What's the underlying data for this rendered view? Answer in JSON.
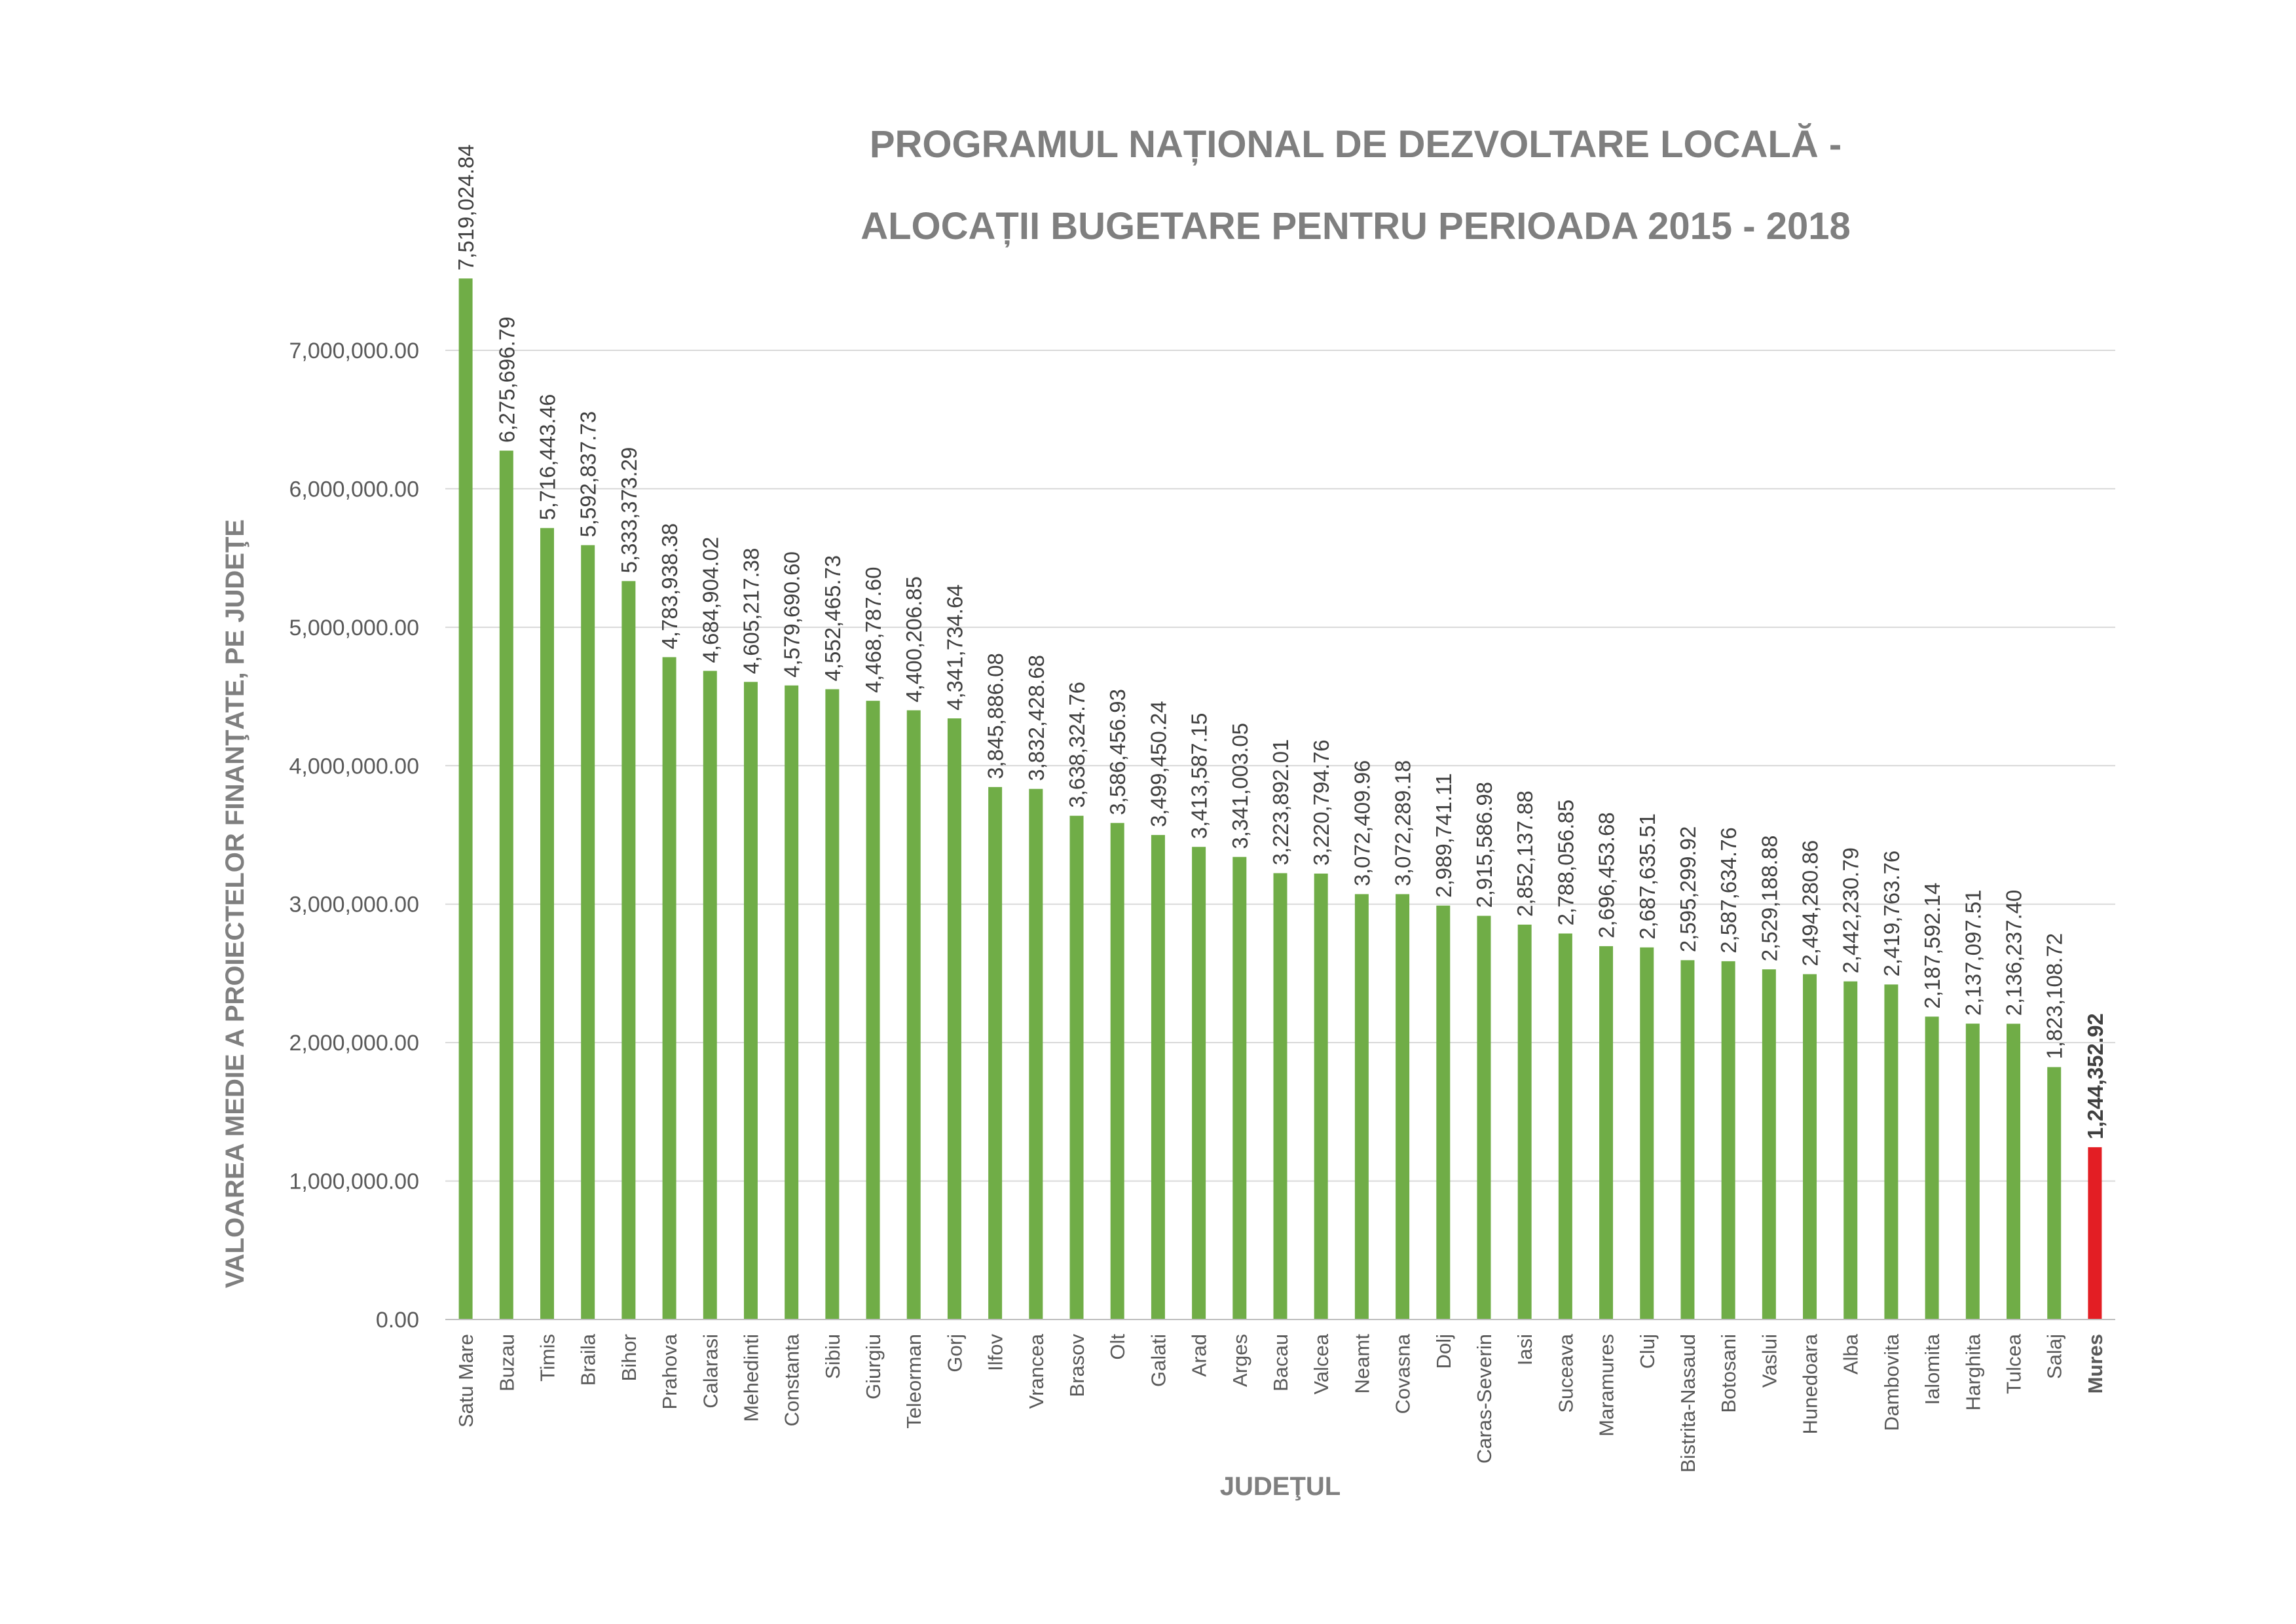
{
  "colors": {
    "bar": "#70ad47",
    "highlight": "#e31e24",
    "text": "#7f7f7f"
  },
  "chart_data": {
    "type": "bar",
    "title_line1": "PROGRAMUL NAȚIONAL DE DEZVOLTARE LOCALĂ  -",
    "title_line2": "ALOCAȚII BUGETARE PENTRU PERIOADA 2015 - 2018",
    "xlabel": "JUDEŢUL",
    "ylabel": "VALOAREA MEDIE A PROIECTELOR FINANŢATE, PE JUDEŢE",
    "ylim": [
      0,
      7000000
    ],
    "yticks": [
      0,
      1000000,
      2000000,
      3000000,
      4000000,
      5000000,
      6000000,
      7000000
    ],
    "ytick_labels": [
      "0.00",
      "1,000,000.00",
      "2,000,000.00",
      "3,000,000.00",
      "4,000,000.00",
      "5,000,000.00",
      "6,000,000.00",
      "7,000,000.00"
    ],
    "grid": true,
    "highlight_category": "Mures",
    "categories": [
      "Satu Mare",
      "Buzau",
      "Timis",
      "Braila",
      "Bihor",
      "Prahova",
      "Calarasi",
      "Mehedinti",
      "Constanta",
      "Sibiu",
      "Giurgiu",
      "Teleorman",
      "Gorj",
      "Ilfov",
      "Vrancea",
      "Brasov",
      "Olt",
      "Galati",
      "Arad",
      "Arges",
      "Bacau",
      "Valcea",
      "Neamt",
      "Covasna",
      "Dolj",
      "Caras-Severin",
      "Iasi",
      "Suceava",
      "Maramures",
      "Cluj",
      "Bistrita-Nasaud",
      "Botosani",
      "Vaslui",
      "Hunedoara",
      "Alba",
      "Dambovita",
      "Ialomita",
      "Harghita",
      "Tulcea",
      "Salaj",
      "Mures"
    ],
    "values": [
      7519024.84,
      6275696.79,
      5716443.46,
      5592837.73,
      5333373.29,
      4783938.38,
      4684904.02,
      4605217.38,
      4579690.6,
      4552465.73,
      4468787.6,
      4400206.85,
      4341734.64,
      3845886.08,
      3832428.68,
      3638324.76,
      3586456.93,
      3499450.24,
      3413587.15,
      3341003.05,
      3223892.01,
      3220794.76,
      3072409.96,
      3072289.18,
      2989741.11,
      2915586.98,
      2852137.88,
      2788056.85,
      2696453.68,
      2687635.51,
      2595299.92,
      2587634.76,
      2529188.88,
      2494280.86,
      2442230.79,
      2419763.76,
      2187592.14,
      2137097.51,
      2136237.4,
      1823108.72,
      1244352.92
    ],
    "value_labels": [
      "7,519,024.84",
      "6,275,696.79",
      "5,716,443.46",
      "5,592,837.73",
      "5,333,373.29",
      "4,783,938.38",
      "4,684,904.02",
      "4,605,217.38",
      "4,579,690.60",
      "4,552,465.73",
      "4,468,787.60",
      "4,400,206.85",
      "4,341,734.64",
      "3,845,886.08",
      "3,832,428.68",
      "3,638,324.76",
      "3,586,456.93",
      "3,499,450.24",
      "3,413,587.15",
      "3,341,003.05",
      "3,223,892.01",
      "3,220,794.76",
      "3,072,409.96",
      "3,072,289.18",
      "2,989,741.11",
      "2,915,586.98",
      "2,852,137.88",
      "2,788,056.85",
      "2,696,453.68",
      "2,687,635.51",
      "2,595,299.92",
      "2,587,634.76",
      "2,529,188.88",
      "2,494,280.86",
      "2,442,230.79",
      "2,419,763.76",
      "2,187,592.14",
      "2,137,097.51",
      "2,136,237.40",
      "1,823,108.72",
      "1,244,352.92"
    ]
  }
}
